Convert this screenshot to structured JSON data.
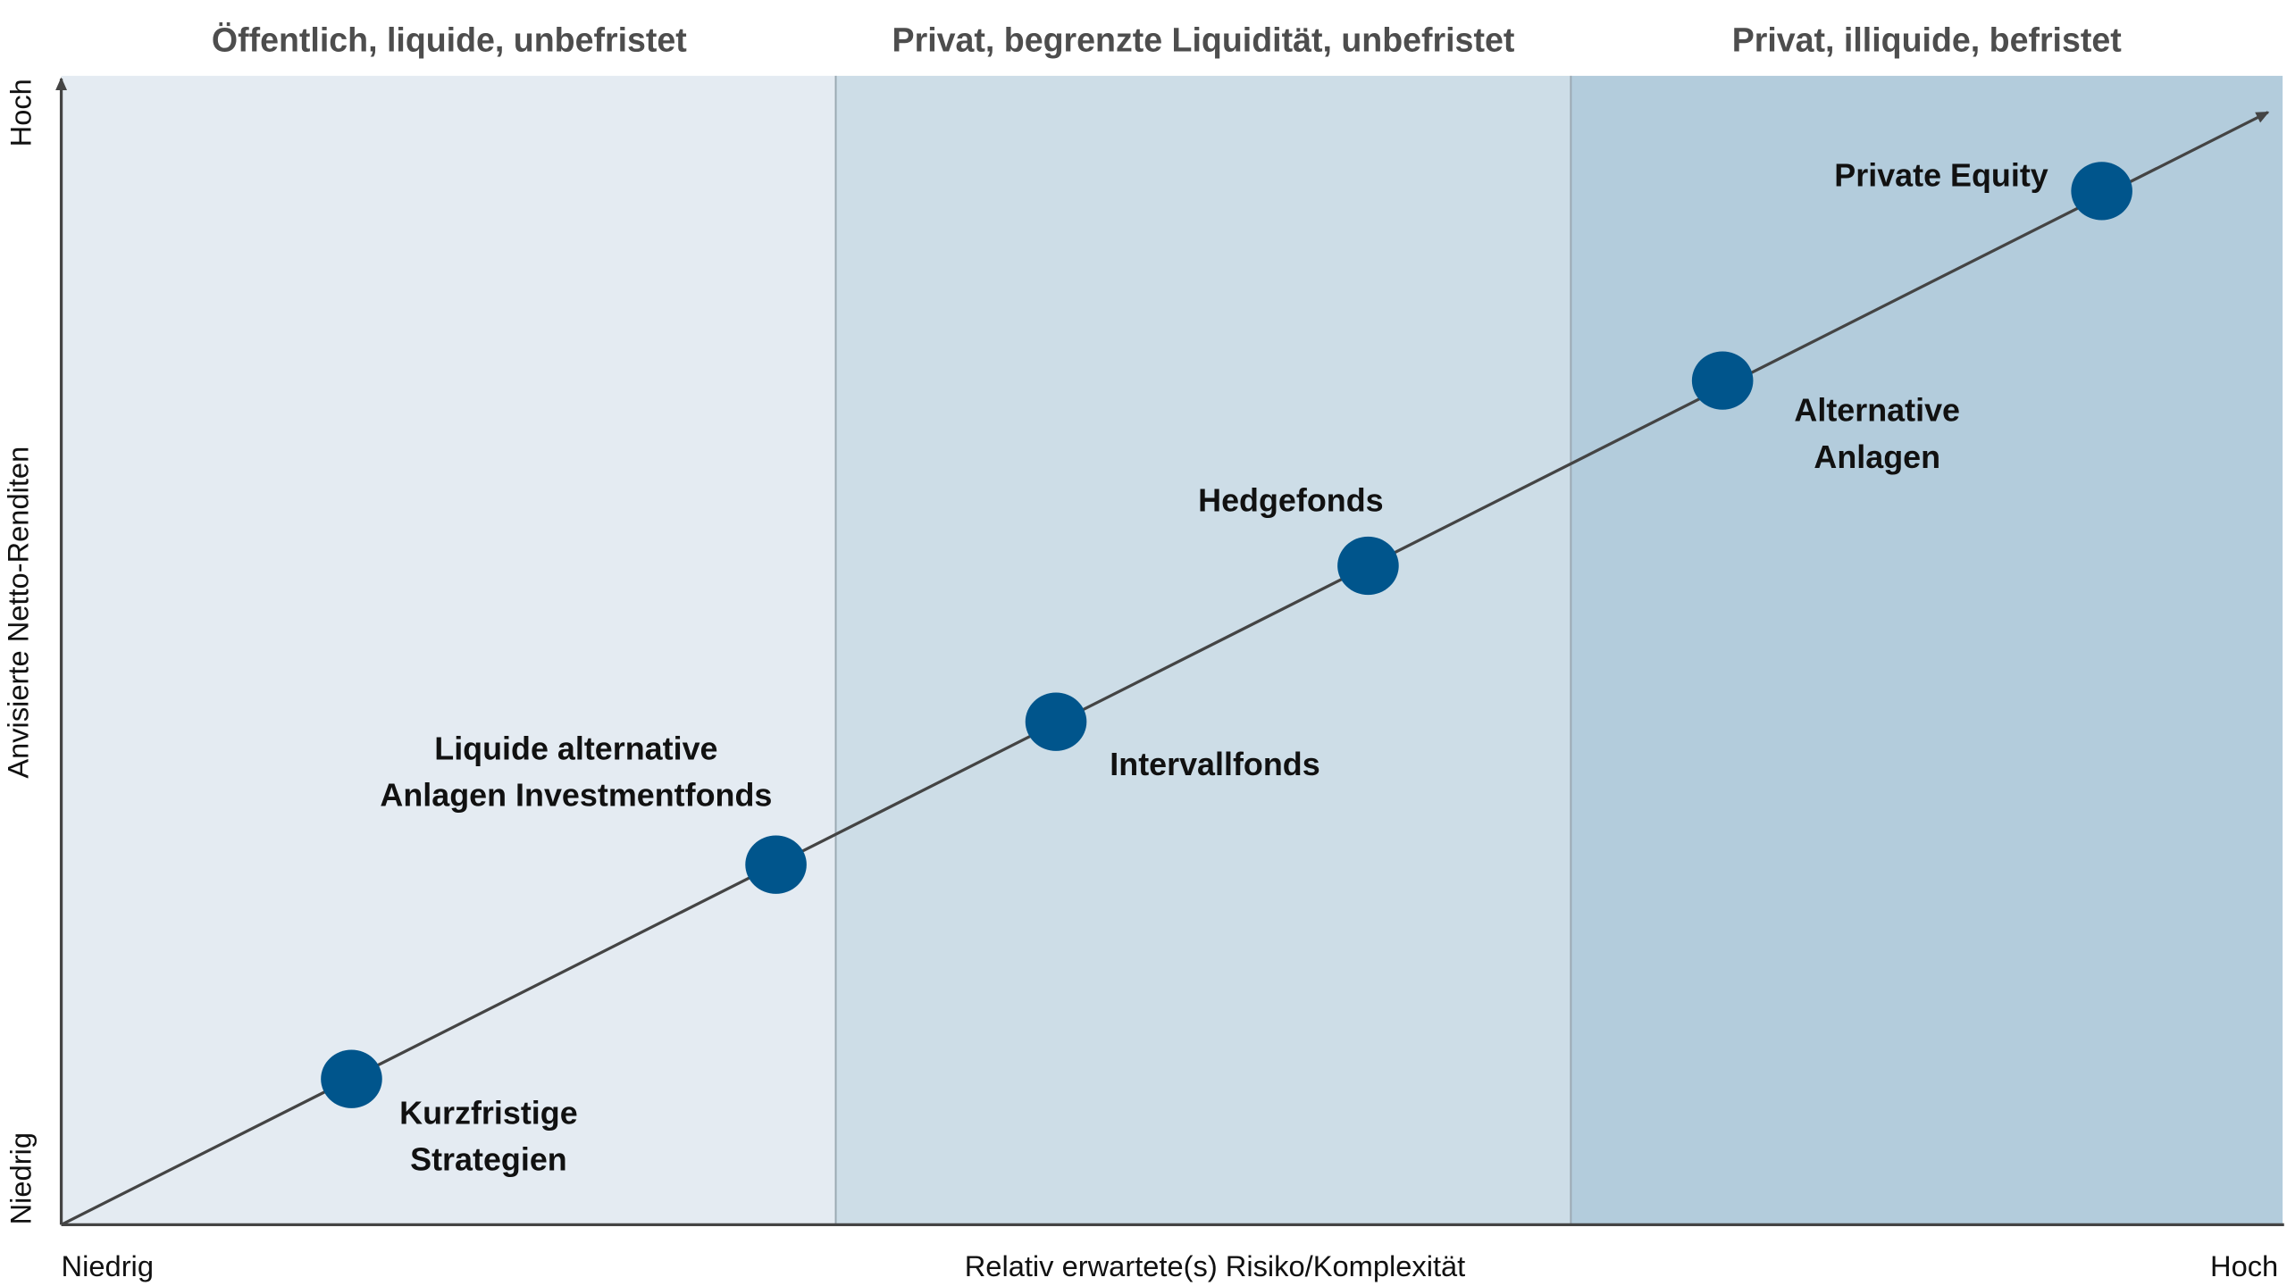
{
  "zones": [
    {
      "title": "Öffentlich, liquide, unbefristet"
    },
    {
      "title": "Privat, begrenzte Liquidität, unbefristet"
    },
    {
      "title": "Privat, illiquide, befristet"
    }
  ],
  "nodes": [
    {
      "label": [
        "Kurzfristige",
        "Strategien"
      ]
    },
    {
      "label": [
        "Liquide alternative",
        "Anlagen Investmentfonds"
      ]
    },
    {
      "label": [
        "Intervallfonds"
      ]
    },
    {
      "label": [
        "Hedgefonds"
      ]
    },
    {
      "label": [
        "Alternative",
        "Anlagen"
      ]
    },
    {
      "label": [
        "Private Equity"
      ]
    }
  ],
  "y_axis": {
    "title": "Anvisierte Netto-Renditen",
    "low": "Niedrig",
    "high": "Hoch"
  },
  "x_axis": {
    "title": "Relativ erwartete(s) Risiko/Komplexität",
    "low": "Niedrig",
    "high": "Hoch"
  }
}
